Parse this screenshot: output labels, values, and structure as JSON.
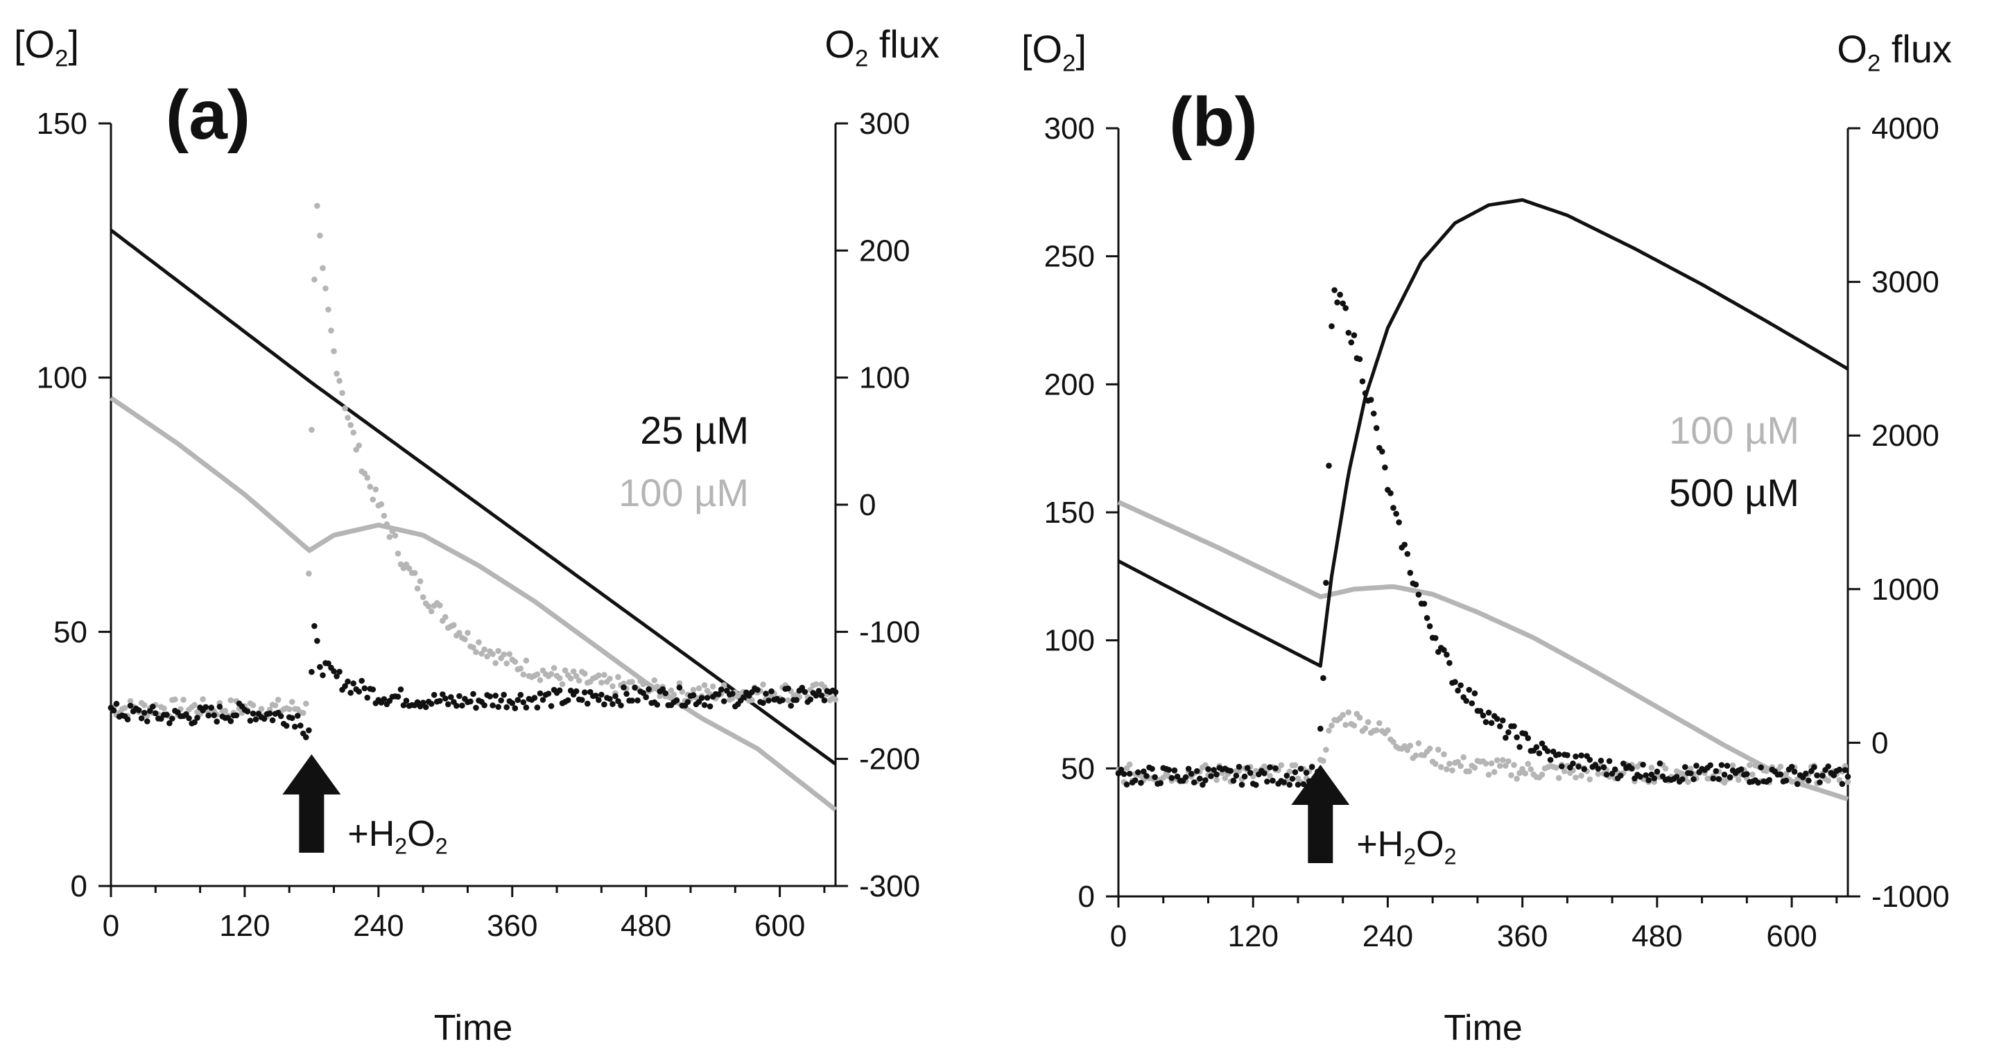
{
  "chart_data": [
    {
      "type": "scatter",
      "panel_label": "(a)",
      "title": "",
      "xlabel": "Time",
      "ylabel_left": "[O2]",
      "ylabel_right": "O2 flux",
      "xlim": [
        0,
        650
      ],
      "ylim_left": [
        0,
        150
      ],
      "ylim_right": [
        -300,
        300
      ],
      "x_ticks": [
        "0",
        "120",
        "240",
        "360",
        "480",
        "600"
      ],
      "y_left_ticks": [
        "0",
        "50",
        "100",
        "150"
      ],
      "y_right_ticks": [
        "-300",
        "-200",
        "-100",
        "0",
        "100",
        "200",
        "300"
      ],
      "legend": [
        {
          "label": "25 µM",
          "color": "#111111"
        },
        {
          "label": "100 µM",
          "color": "#b5b5b5"
        }
      ],
      "annotation": "+H2O2",
      "annotation_time": 180,
      "series": [
        {
          "name": "25 µM [O2]",
          "axis": "left",
          "style": "line",
          "color": "#111111",
          "points": [
            [
              0,
              129
            ],
            [
              180,
              99
            ],
            [
              650,
              24
            ]
          ]
        },
        {
          "name": "100 µM [O2]",
          "axis": "left",
          "style": "line",
          "color": "#b5b5b5",
          "points": [
            [
              0,
              96
            ],
            [
              60,
              87
            ],
            [
              120,
              77
            ],
            [
              178,
              66
            ],
            [
              200,
              69
            ],
            [
              240,
              71
            ],
            [
              280,
              69
            ],
            [
              330,
              63
            ],
            [
              380,
              56
            ],
            [
              430,
              48
            ],
            [
              480,
              40
            ],
            [
              530,
              33
            ],
            [
              580,
              27
            ],
            [
              650,
              15
            ]
          ]
        },
        {
          "name": "25 µM O2 flux",
          "axis": "right",
          "style": "points",
          "color": "#111111",
          "points": [
            [
              0,
              -163
            ],
            [
              60,
              -167
            ],
            [
              120,
              -163
            ],
            [
              170,
              -168
            ],
            [
              177,
              -185
            ],
            [
              182,
              -100
            ],
            [
              188,
              -125
            ],
            [
              195,
              -132
            ],
            [
              210,
              -140
            ],
            [
              240,
              -150
            ],
            [
              300,
              -155
            ],
            [
              360,
              -153
            ],
            [
              420,
              -152
            ],
            [
              480,
              -150
            ],
            [
              540,
              -152
            ],
            [
              600,
              -151
            ],
            [
              650,
              -151
            ]
          ]
        },
        {
          "name": "100 µM O2 flux",
          "axis": "right",
          "style": "points",
          "color": "#b5b5b5",
          "points": [
            [
              0,
              -160
            ],
            [
              100,
              -160
            ],
            [
              175,
              -160
            ],
            [
              184,
              240
            ],
            [
              190,
              180
            ],
            [
              200,
              120
            ],
            [
              215,
              60
            ],
            [
              230,
              20
            ],
            [
              245,
              -10
            ],
            [
              265,
              -50
            ],
            [
              290,
              -80
            ],
            [
              320,
              -105
            ],
            [
              360,
              -125
            ],
            [
              400,
              -135
            ],
            [
              450,
              -142
            ],
            [
              520,
              -148
            ],
            [
              600,
              -147
            ],
            [
              650,
              -148
            ]
          ]
        }
      ]
    },
    {
      "type": "scatter",
      "panel_label": "(b)",
      "title": "",
      "xlabel": "Time",
      "ylabel_left": "[O2]",
      "ylabel_right": "O2 flux",
      "xlim": [
        0,
        650
      ],
      "ylim_left": [
        0,
        300
      ],
      "ylim_right": [
        -1000,
        4000
      ],
      "x_ticks": [
        "0",
        "120",
        "240",
        "360",
        "480",
        "600"
      ],
      "y_left_ticks": [
        "0",
        "50",
        "100",
        "150",
        "200",
        "250",
        "300"
      ],
      "y_right_ticks": [
        "-1000",
        "0",
        "1000",
        "2000",
        "3000",
        "4000"
      ],
      "legend": [
        {
          "label": "100 µM",
          "color": "#b5b5b5"
        },
        {
          "label": "500 µM",
          "color": "#111111"
        }
      ],
      "annotation": "+H2O2",
      "annotation_time": 180,
      "series": [
        {
          "name": "500 µM [O2]",
          "axis": "left",
          "style": "line",
          "color": "#111111",
          "points": [
            [
              0,
              131
            ],
            [
              100,
              108
            ],
            [
              180,
              90
            ],
            [
              190,
              125
            ],
            [
              205,
              165
            ],
            [
              220,
              195
            ],
            [
              240,
              222
            ],
            [
              270,
              248
            ],
            [
              300,
              263
            ],
            [
              330,
              270
            ],
            [
              360,
              272
            ],
            [
              400,
              266
            ],
            [
              460,
              253
            ],
            [
              520,
              239
            ],
            [
              580,
              224
            ],
            [
              650,
              206
            ]
          ]
        },
        {
          "name": "100 µM [O2]",
          "axis": "left",
          "style": "line",
          "color": "#b5b5b5",
          "points": [
            [
              0,
              154
            ],
            [
              90,
              136
            ],
            [
              180,
              117
            ],
            [
              210,
              120
            ],
            [
              245,
              121
            ],
            [
              280,
              118
            ],
            [
              320,
              111
            ],
            [
              370,
              101
            ],
            [
              420,
              89
            ],
            [
              480,
              74
            ],
            [
              540,
              59
            ],
            [
              600,
              45
            ],
            [
              650,
              38
            ]
          ]
        },
        {
          "name": "500 µM O2 flux",
          "axis": "right",
          "style": "points",
          "color": "#111111",
          "points": [
            [
              0,
              -215
            ],
            [
              90,
              -215
            ],
            [
              178,
              -215
            ],
            [
              182,
              300
            ],
            [
              185,
              1000
            ],
            [
              188,
              2000
            ],
            [
              190,
              2700
            ],
            [
              192,
              2890
            ],
            [
              200,
              2850
            ],
            [
              210,
              2600
            ],
            [
              225,
              2200
            ],
            [
              245,
              1500
            ],
            [
              270,
              900
            ],
            [
              300,
              400
            ],
            [
              340,
              100
            ],
            [
              390,
              -100
            ],
            [
              440,
              -170
            ],
            [
              500,
              -200
            ],
            [
              560,
              -205
            ],
            [
              620,
              -210
            ],
            [
              650,
              -210
            ]
          ]
        },
        {
          "name": "100 µM O2 flux",
          "axis": "right",
          "style": "points",
          "color": "#b5b5b5",
          "points": [
            [
              0,
              -200
            ],
            [
              90,
              -200
            ],
            [
              178,
              -205
            ],
            [
              185,
              0
            ],
            [
              195,
              150
            ],
            [
              205,
              170
            ],
            [
              220,
              130
            ],
            [
              240,
              50
            ],
            [
              265,
              -50
            ],
            [
              300,
              -140
            ],
            [
              360,
              -180
            ],
            [
              420,
              -190
            ],
            [
              500,
              -200
            ],
            [
              580,
              -205
            ],
            [
              650,
              -205
            ]
          ]
        }
      ]
    }
  ]
}
